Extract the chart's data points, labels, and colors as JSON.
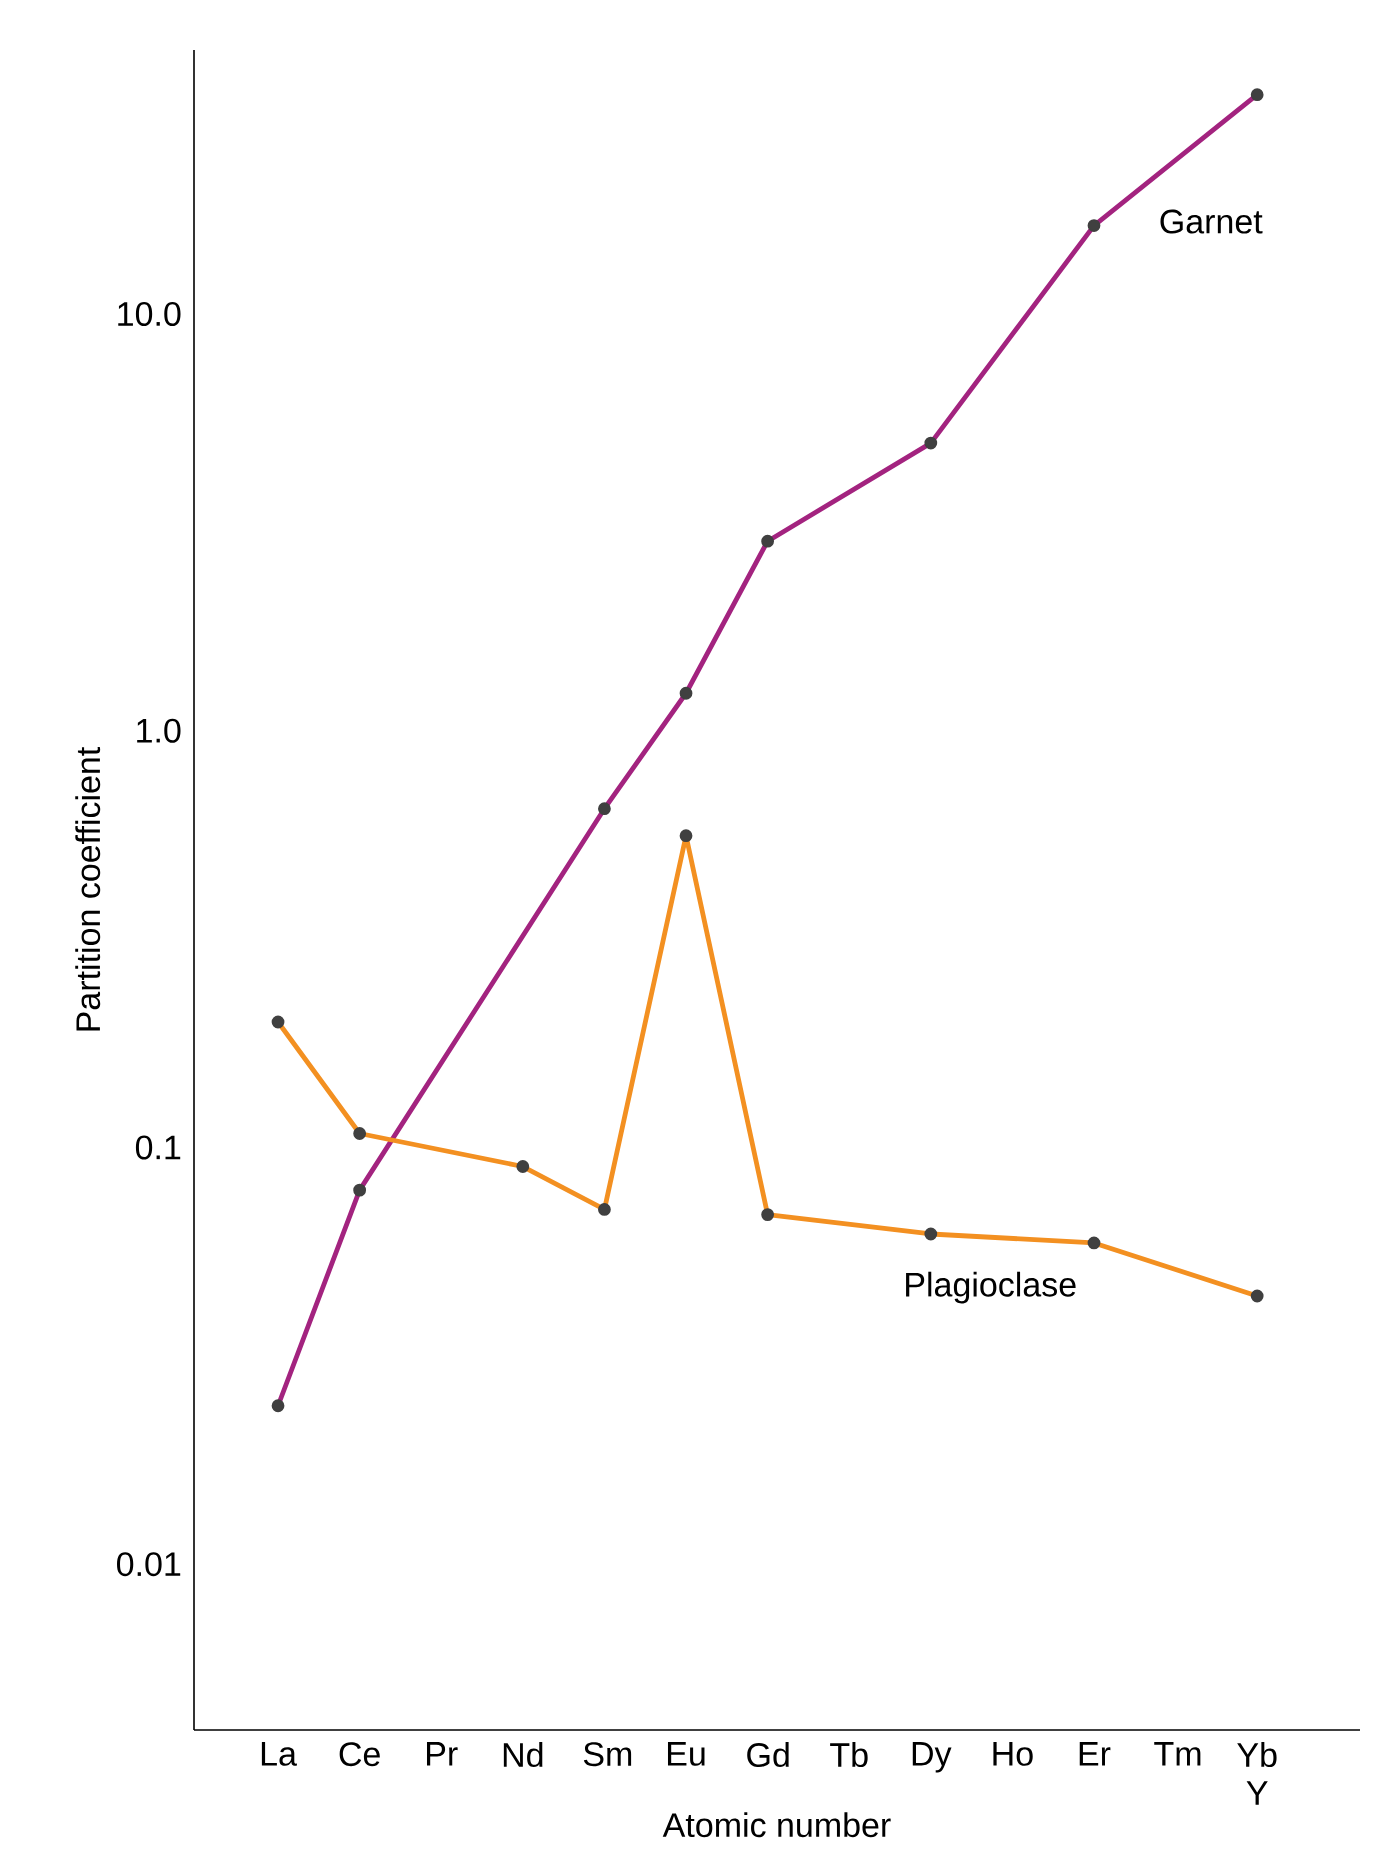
{
  "chart_data": {
    "type": "line",
    "xlabel": "Atomic number",
    "ylabel": "Partition coefficient",
    "categories": [
      "La",
      "Ce",
      "Pr",
      "Nd",
      "Sm",
      "Eu",
      "Gd",
      "Tb",
      "Dy",
      "Ho",
      "Er",
      "Tm",
      "Yb Y"
    ],
    "series": [
      {
        "name": "Garnet",
        "color": "#a3237f",
        "values": [
          0.024,
          0.079,
          null,
          null,
          0.65,
          1.23,
          2.85,
          null,
          4.9,
          null,
          16.3,
          null,
          33.6
        ]
      },
      {
        "name": "Plagioclase",
        "color": "#f39021",
        "values": [
          0.2,
          0.108,
          null,
          0.09,
          0.071,
          0.56,
          0.069,
          null,
          0.062,
          null,
          0.059,
          null,
          0.044
        ]
      }
    ],
    "log": "y",
    "ylim": [
      0.004,
      43
    ],
    "yticks": [
      {
        "value": 0.01,
        "label": "0.01"
      },
      {
        "value": 0.1,
        "label": "0.1"
      },
      {
        "value": 1,
        "label": "1.0"
      },
      {
        "value": 10,
        "label": "10.0"
      }
    ],
    "grid": false,
    "legend": false,
    "marker": "circle",
    "line_style": "solid"
  }
}
